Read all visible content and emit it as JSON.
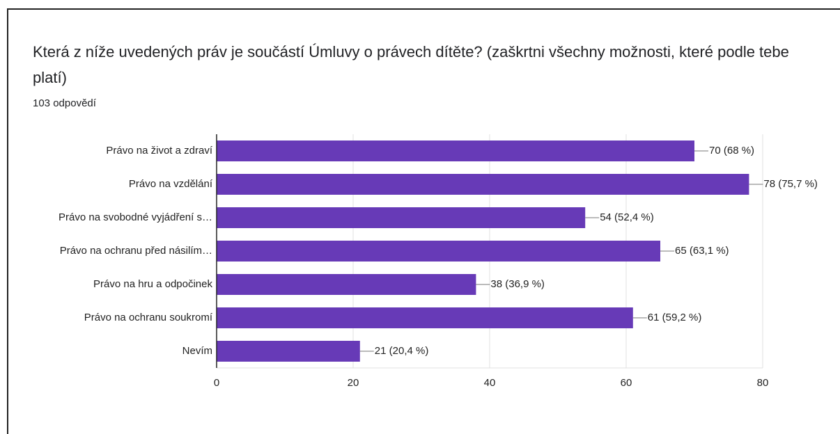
{
  "chart_data": {
    "type": "bar",
    "orientation": "horizontal",
    "title": "Která z níže uvedených práv je součástí Úmluvy o právech dítěte? (zaškrtni všechny možnosti, které podle tebe platí)",
    "subtitle": "103 odpovědí",
    "categories": [
      "Právo na život a zdraví",
      "Právo na vzdělání",
      "Právo na svobodné vyjádření s…",
      "Právo na ochranu před násilím…",
      "Právo na hru a odpočinek",
      "Právo na ochranu soukromí",
      "Nevím"
    ],
    "values": [
      70,
      78,
      54,
      65,
      38,
      61,
      21
    ],
    "value_labels": [
      "70 (68 %)",
      "78 (75,7 %)",
      "54 (52,4 %)",
      "65 (63,1 %)",
      "38 (36,9 %)",
      "61 (59,2 %)",
      "21 (20,4 %)"
    ],
    "color": "#673ab7",
    "xlim": [
      0,
      80
    ],
    "xticks": [
      0,
      20,
      40,
      60,
      80
    ],
    "grid": true
  }
}
